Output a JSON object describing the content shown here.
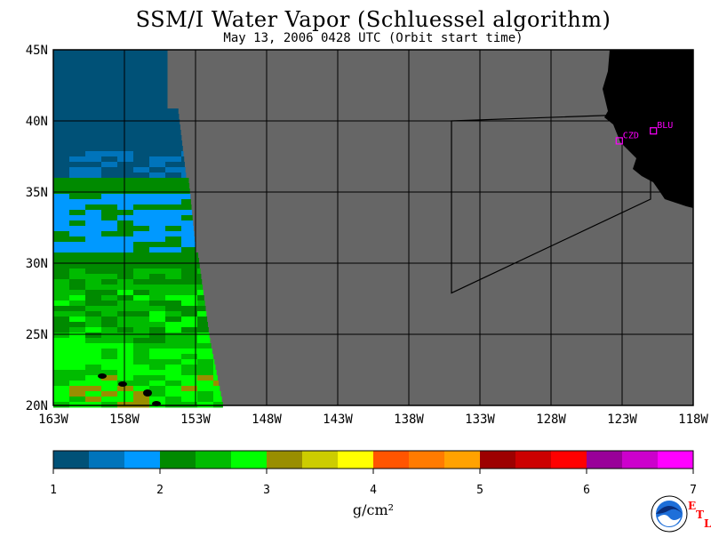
{
  "title": "SSM/I Water Vapor (Schluessel algorithm)",
  "subtitle": "May 13, 2006  0428 UTC  (Orbit start time)",
  "map": {
    "lon_range": [
      -163,
      -118
    ],
    "lat_range": [
      20,
      45
    ],
    "lat_labels": [
      "20N",
      "25N",
      "30N",
      "35N",
      "40N",
      "45N"
    ],
    "lon_labels": [
      "163W",
      "158W",
      "153W",
      "148W",
      "143W",
      "138W",
      "133W",
      "128W",
      "123W",
      "118W"
    ],
    "colors": {
      "no_data": "#666666",
      "land": "#000000",
      "frame": "#000000",
      "station": "#ff00ff"
    },
    "stations": [
      {
        "name": "CZD",
        "lon": -123.2,
        "lat": 38.6
      },
      {
        "name": "BLU",
        "lon": -120.8,
        "lat": 39.3
      }
    ],
    "domain_box": [
      {
        "lon": -135.0,
        "lat": 40.0
      },
      {
        "lon": -121.0,
        "lat": 40.5
      },
      {
        "lon": -121.0,
        "lat": 34.5
      },
      {
        "lon": -135.0,
        "lat": 27.9
      }
    ]
  },
  "colorbar": {
    "min": 1,
    "max": 7,
    "ticks": [
      "1",
      "2",
      "3",
      "4",
      "5",
      "6",
      "7"
    ],
    "colors": [
      "#005177",
      "#0074bb",
      "#0099ff",
      "#008a00",
      "#00bb00",
      "#00ff00",
      "#998e00",
      "#cccc00",
      "#ffff00",
      "#ff5500",
      "#ff7b00",
      "#ffa200",
      "#9d0000",
      "#cc0000",
      "#ff0000",
      "#990099",
      "#cc00cc",
      "#ff00ff"
    ],
    "units_text": "g/cm²"
  },
  "logo": {
    "name": "NOAA",
    "etl_letters": [
      "E",
      "T",
      "L"
    ]
  }
}
